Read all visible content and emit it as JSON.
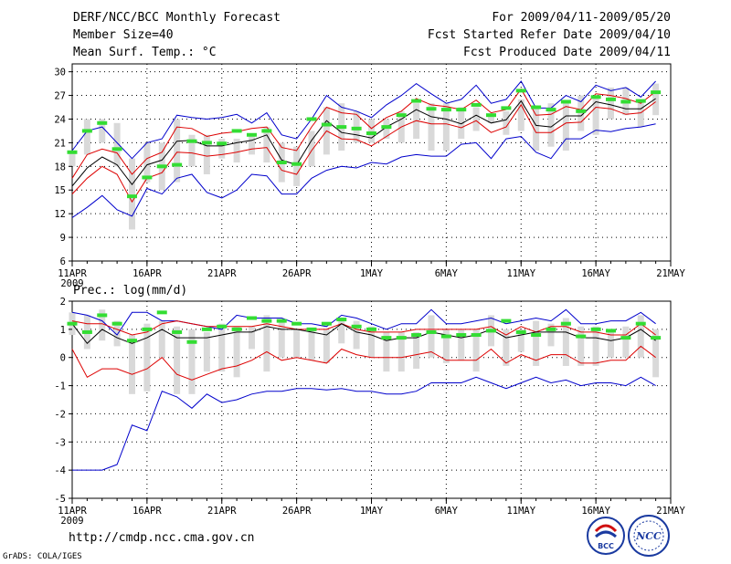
{
  "header": {
    "title": "DERF/NCC/BCC Monthly Forecast",
    "member_size": "Member Size=40",
    "variable": "Mean Surf. Temp.: °C",
    "period": "For 2009/04/11-2009/05/20",
    "started": "Fcst Started Refer Date 2009/04/10",
    "produced": "Fcst Produced Date 2009/04/11"
  },
  "footer": {
    "url": "http://cmdp.ncc.cma.gov.cn",
    "credit": "GrADS: COLA/IGES",
    "logo_bcc": "BCC",
    "logo_ncc": "NCC"
  },
  "colors": {
    "ensemble_mean": "#000000",
    "max_min": "#0000cc",
    "spread": "#dd0000",
    "member_bar": "#d9d9d9",
    "observed": "#33dd33"
  },
  "chart_data": [
    {
      "type": "line",
      "title": "Mean Surf. Temp.: °C",
      "x_tick_labels": [
        "11APR",
        "16APR",
        "21APR",
        "26APR",
        "1MAY",
        "6MAY",
        "11MAY",
        "16MAY",
        "21MAY"
      ],
      "x_tick_days": [
        0,
        5,
        10,
        15,
        20,
        25,
        30,
        35,
        40
      ],
      "year_label": "2009",
      "xlim": [
        0,
        40
      ],
      "ylim": [
        6,
        31
      ],
      "y_ticks": [
        6,
        9,
        12,
        15,
        18,
        21,
        24,
        27,
        30
      ],
      "grid": true,
      "days": [
        0,
        1,
        2,
        3,
        4,
        5,
        6,
        7,
        8,
        9,
        10,
        11,
        12,
        13,
        14,
        15,
        16,
        17,
        18,
        19,
        20,
        21,
        22,
        23,
        24,
        25,
        26,
        27,
        28,
        29,
        30,
        31,
        32,
        33,
        34,
        35,
        36,
        37,
        38,
        39
      ],
      "series": [
        {
          "name": "max",
          "values": [
            20,
            22.5,
            23,
            21,
            19,
            21,
            21.5,
            24.5,
            24.2,
            24,
            24.2,
            24.6,
            23.5,
            24.8,
            22,
            21.5,
            24,
            27,
            25.5,
            25,
            24.2,
            25.8,
            27,
            28.5,
            27.2,
            26,
            26.5,
            28.3,
            26,
            26.5,
            28.8,
            25.4,
            25.4,
            27,
            26.2,
            28.3,
            27.6,
            28,
            26.8,
            28.8
          ]
        },
        {
          "name": "upper_spread",
          "values": [
            16.5,
            19.5,
            20.2,
            19.7,
            17,
            19,
            19.8,
            23,
            22.8,
            21.8,
            22.2,
            22.4,
            22.8,
            23,
            20.4,
            20,
            23,
            25.5,
            24.8,
            24.6,
            22.8,
            24.2,
            25,
            26.6,
            25.8,
            25.6,
            25.2,
            26.4,
            24.8,
            25.2,
            27.8,
            24.5,
            24.6,
            25.6,
            25.2,
            27.2,
            27,
            26.6,
            26,
            27.5
          ]
        },
        {
          "name": "ensemble_mean",
          "values": [
            15.5,
            17.8,
            19.2,
            18.2,
            15.7,
            18.2,
            18.8,
            21.2,
            21.3,
            20.6,
            20.6,
            21,
            21.3,
            22,
            18.8,
            18.2,
            21.3,
            23.8,
            22.3,
            22,
            21.6,
            23,
            24,
            25.2,
            24.3,
            24,
            23.4,
            24.5,
            23.5,
            23.9,
            26.3,
            23.2,
            23,
            24.4,
            24.4,
            26.2,
            25.8,
            25.3,
            25.3,
            26.6
          ]
        },
        {
          "name": "lower_spread",
          "values": [
            14.5,
            16.5,
            18,
            17,
            13.5,
            16.5,
            17.2,
            19.8,
            19.7,
            19.3,
            19.5,
            19.8,
            20.2,
            20.4,
            17.5,
            17,
            20,
            22.5,
            21.5,
            21.4,
            20.6,
            21.8,
            23,
            23.8,
            23.4,
            23.4,
            22.9,
            23.8,
            22.3,
            23,
            25.8,
            22.3,
            22.3,
            23.5,
            23.6,
            25.5,
            25.3,
            24.6,
            24.8,
            26.2
          ]
        },
        {
          "name": "min",
          "values": [
            11.5,
            12.8,
            14.3,
            12.5,
            11.7,
            15.2,
            14.5,
            16.5,
            17,
            14.7,
            14,
            15,
            17,
            16.8,
            14.5,
            14.5,
            16.5,
            17.5,
            18,
            17.8,
            18.5,
            18.3,
            19.2,
            19.5,
            19.3,
            19.3,
            20.8,
            21,
            19,
            21.5,
            21.8,
            19.8,
            19,
            21.5,
            21.5,
            22.6,
            22.4,
            22.8,
            23,
            23.4
          ]
        },
        {
          "name": "member_bar_top",
          "values": [
            20,
            24,
            24,
            23.5,
            19,
            21,
            21,
            24,
            22,
            22,
            21.5,
            21.5,
            22,
            23,
            21,
            20.5,
            22.5,
            25.5,
            26,
            25,
            24,
            24,
            25,
            26,
            26,
            26,
            25.5,
            25.5,
            24.5,
            25,
            26.5,
            25.5,
            26,
            26,
            27,
            27,
            28,
            28,
            26.5,
            28.5
          ]
        },
        {
          "name": "member_bar_bottom",
          "values": [
            18,
            19.5,
            21,
            18,
            10,
            16,
            15,
            16,
            18,
            17,
            19,
            18.5,
            19.5,
            18.5,
            16,
            15.5,
            18,
            19.5,
            20,
            21,
            21,
            21.5,
            21,
            21.5,
            20,
            20,
            21.5,
            22.5,
            23.5,
            22,
            22.5,
            20,
            20.5,
            20,
            22.5,
            22,
            24,
            24.5,
            23,
            24.5
          ]
        },
        {
          "name": "observed",
          "values": [
            19.8,
            22.5,
            23.5,
            20.2,
            14.2,
            16.6,
            18,
            18.2,
            21.2,
            21,
            20.9,
            22.5,
            22,
            22.5,
            18.5,
            18.3,
            24,
            23.3,
            23,
            22.8,
            22.2,
            23,
            24.5,
            26.3,
            25.3,
            25.2,
            25.2,
            25.8,
            24.5,
            25.4,
            27.6,
            25.5,
            25.2,
            26.2,
            25,
            26.8,
            26.5,
            26.2,
            26.3,
            27.4
          ]
        }
      ]
    },
    {
      "type": "line",
      "title": "Prec.: log(mm/d)",
      "x_tick_labels": [
        "11APR",
        "16APR",
        "21APR",
        "26APR",
        "1MAY",
        "6MAY",
        "11MAY",
        "16MAY",
        "21MAY"
      ],
      "x_tick_days": [
        0,
        5,
        10,
        15,
        20,
        25,
        30,
        35,
        40
      ],
      "year_label": "2009",
      "xlim": [
        0,
        40
      ],
      "ylim": [
        -5,
        2
      ],
      "y_ticks": [
        -5,
        -4,
        -3,
        -2,
        -1,
        0,
        1,
        2
      ],
      "grid": true,
      "days": [
        0,
        1,
        2,
        3,
        4,
        5,
        6,
        7,
        8,
        9,
        10,
        11,
        12,
        13,
        14,
        15,
        16,
        17,
        18,
        19,
        20,
        21,
        22,
        23,
        24,
        25,
        26,
        27,
        28,
        29,
        30,
        31,
        32,
        33,
        34,
        35,
        36,
        37,
        38,
        39
      ],
      "series": [
        {
          "name": "max",
          "values": [
            1.6,
            1.5,
            1.3,
            0.8,
            1.6,
            1.6,
            1.3,
            1.3,
            1.2,
            1.1,
            1,
            1.5,
            1.4,
            1.4,
            1.4,
            1.2,
            1.2,
            1.1,
            1.5,
            1.4,
            1.2,
            1,
            1.2,
            1.2,
            1.7,
            1.2,
            1.2,
            1.3,
            1.4,
            1.2,
            1.3,
            1.4,
            1.3,
            1.7,
            1.2,
            1.2,
            1.3,
            1.3,
            1.6,
            1.2
          ]
        },
        {
          "name": "upper_spread",
          "values": [
            1.3,
            1.2,
            1.2,
            1,
            0.8,
            0.9,
            1.2,
            1.3,
            1.2,
            1.1,
            1.1,
            1.1,
            1.1,
            1.2,
            1.1,
            1,
            1,
            1,
            1.2,
            1,
            0.9,
            0.9,
            0.9,
            1,
            1,
            1,
            1,
            1,
            1.1,
            0.8,
            1.1,
            0.9,
            1.1,
            1.1,
            0.9,
            0.9,
            0.8,
            0.8,
            1.2,
            0.8
          ]
        },
        {
          "name": "ensemble_mean",
          "values": [
            1.2,
            0.5,
            1,
            0.7,
            0.5,
            0.7,
            1,
            0.7,
            0.7,
            0.7,
            0.8,
            0.9,
            0.9,
            1.1,
            1,
            1,
            0.9,
            0.8,
            1.2,
            0.9,
            0.8,
            0.6,
            0.7,
            0.7,
            0.9,
            0.8,
            0.7,
            0.8,
            1,
            0.7,
            0.8,
            0.9,
            0.9,
            0.9,
            0.7,
            0.7,
            0.6,
            0.7,
            1,
            0.6
          ]
        },
        {
          "name": "lower_spread",
          "values": [
            0.3,
            -0.7,
            -0.4,
            -0.4,
            -0.6,
            -0.4,
            0,
            -0.6,
            -0.8,
            -0.6,
            -0.4,
            -0.3,
            -0.1,
            0.2,
            -0.1,
            0,
            -0.1,
            -0.2,
            0.3,
            0.1,
            0,
            0,
            0,
            0.1,
            0.2,
            -0.1,
            -0.1,
            -0.1,
            0.3,
            -0.2,
            0.1,
            -0.1,
            0.1,
            0.1,
            -0.2,
            -0.2,
            -0.1,
            -0.1,
            0.4,
            0
          ]
        },
        {
          "name": "min",
          "values": [
            -4,
            -4,
            -4,
            -3.8,
            -2.4,
            -2.6,
            -1.2,
            -1.4,
            -1.8,
            -1.3,
            -1.6,
            -1.5,
            -1.3,
            -1.2,
            -1.2,
            -1.1,
            -1.1,
            -1.15,
            -1.1,
            -1.2,
            -1.2,
            -1.3,
            -1.3,
            -1.2,
            -0.9,
            -0.9,
            -0.9,
            -0.7,
            -0.9,
            -1.1,
            -0.9,
            -0.7,
            -0.9,
            -0.8,
            -1,
            -0.9,
            -0.9,
            -1,
            -0.7,
            -1
          ]
        },
        {
          "name": "member_bar_top",
          "values": [
            1.6,
            1.5,
            1.7,
            1.3,
            0.8,
            1.2,
            1.3,
            1.1,
            1,
            0.9,
            1.2,
            1.1,
            1.1,
            1.5,
            1.3,
            1,
            1,
            1,
            1.3,
            1.3,
            1.1,
            0.9,
            0.9,
            0.9,
            1.5,
            1,
            1,
            1,
            1.5,
            1,
            1,
            1.3,
            1.2,
            1.4,
            1.1,
            1.1,
            1,
            1.1,
            1.5,
            1
          ]
        },
        {
          "name": "member_bar_bottom",
          "values": [
            0.8,
            0.3,
            0.6,
            0.4,
            -1.3,
            -1.2,
            0,
            -1.3,
            -1.3,
            -0.5,
            -0.5,
            -0.7,
            0.3,
            -0.5,
            0,
            0,
            -0.1,
            -0.2,
            0.5,
            0.3,
            0,
            -0.5,
            -0.5,
            -0.4,
            0,
            -0.2,
            -0.1,
            -0.5,
            0.4,
            -0.3,
            0.2,
            -0.3,
            0.4,
            -0.3,
            -0.3,
            -0.3,
            0,
            0,
            0,
            -0.7
          ]
        },
        {
          "name": "observed",
          "values": [
            1.2,
            0.9,
            1.5,
            1.2,
            0.6,
            1,
            1.6,
            0.9,
            0.55,
            1,
            1.1,
            1,
            1.4,
            1.3,
            1.3,
            1.2,
            1,
            1.2,
            1.35,
            1.1,
            1,
            0.7,
            0.7,
            0.8,
            0.9,
            0.75,
            0.8,
            0.8,
            0.95,
            1.3,
            0.9,
            0.8,
            1,
            1.2,
            0.75,
            1,
            0.95,
            0.7,
            1.2,
            0.7
          ]
        }
      ]
    }
  ]
}
